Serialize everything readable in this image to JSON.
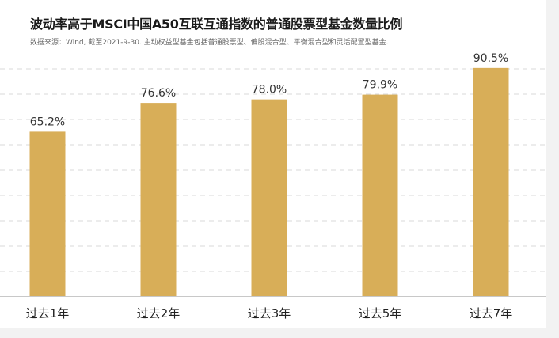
{
  "chart_data": {
    "type": "bar",
    "title": "波动率高于MSCI中国A50互联互通指数的普通股票型基金数量比例",
    "subtitle": "数据来源：Wind, 截至2021-9-30. 主动权益型基金包括普通股票型、偏股混合型、平衡混合型和灵活配置型基金.",
    "categories": [
      "过去1年",
      "过去2年",
      "过去3年",
      "过去5年",
      "过去7年"
    ],
    "values": [
      65.2,
      76.6,
      78.0,
      79.9,
      90.5
    ],
    "value_labels": [
      "65.2%",
      "76.6%",
      "78.0%",
      "79.9%",
      "90.5%"
    ],
    "unit": "%",
    "ylim": [
      0,
      100
    ],
    "grid": "dashed horizontal",
    "colors": {
      "bar": "#D8AE58",
      "grid": "#d9d9d9",
      "axis": "#c8c8c8"
    }
  }
}
